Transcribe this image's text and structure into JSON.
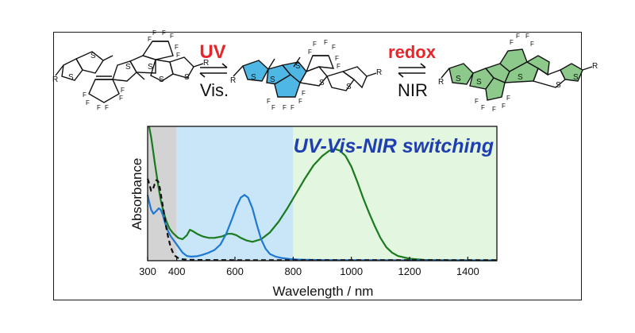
{
  "scheme": {
    "step1_top": "UV",
    "step1_bottom": "Vis.",
    "step2_top": "redox",
    "step2_bottom": "NIR",
    "colors": {
      "accent_red": "#e8262a",
      "blue_ring": "#4fb7e3",
      "green_ring": "#8dc98b",
      "arrow": "#111111"
    },
    "atom_labels": {
      "sulfur": "S",
      "fluorine": "F",
      "substituent": "R"
    }
  },
  "chart_data": {
    "type": "line",
    "title": "UV-Vis-NIR switching",
    "xlabel": "Wavelength / nm",
    "ylabel": "Absorbance",
    "xlim": [
      300,
      1500
    ],
    "ylim": [
      0,
      1
    ],
    "x_ticks": [
      300,
      400,
      600,
      800,
      1000,
      1200,
      1400
    ],
    "grid": false,
    "regions": [
      {
        "range": [
          300,
          400
        ],
        "color": "#d3d3d3"
      },
      {
        "range": [
          400,
          800
        ],
        "color": "#c8e6f7"
      },
      {
        "range": [
          800,
          1500
        ],
        "color": "#e3f6df"
      }
    ],
    "series": [
      {
        "color": "#1a7a1e",
        "style": "solid",
        "points": [
          [
            305,
            1.0
          ],
          [
            312,
            0.92
          ],
          [
            318,
            0.83
          ],
          [
            325,
            0.72
          ],
          [
            335,
            0.58
          ],
          [
            345,
            0.45
          ],
          [
            355,
            0.36
          ],
          [
            365,
            0.29
          ],
          [
            375,
            0.24
          ],
          [
            385,
            0.21
          ],
          [
            395,
            0.19
          ],
          [
            405,
            0.17
          ],
          [
            420,
            0.16
          ],
          [
            435,
            0.19
          ],
          [
            445,
            0.23
          ],
          [
            455,
            0.22
          ],
          [
            470,
            0.2
          ],
          [
            490,
            0.18
          ],
          [
            510,
            0.17
          ],
          [
            530,
            0.17
          ],
          [
            555,
            0.18
          ],
          [
            575,
            0.2
          ],
          [
            590,
            0.2
          ],
          [
            605,
            0.19
          ],
          [
            620,
            0.17
          ],
          [
            640,
            0.15
          ],
          [
            660,
            0.14
          ],
          [
            690,
            0.16
          ],
          [
            720,
            0.21
          ],
          [
            750,
            0.29
          ],
          [
            780,
            0.39
          ],
          [
            810,
            0.5
          ],
          [
            840,
            0.61
          ],
          [
            870,
            0.71
          ],
          [
            900,
            0.78
          ],
          [
            925,
            0.82
          ],
          [
            945,
            0.83
          ],
          [
            960,
            0.82
          ],
          [
            980,
            0.78
          ],
          [
            1000,
            0.7
          ],
          [
            1020,
            0.59
          ],
          [
            1040,
            0.47
          ],
          [
            1060,
            0.36
          ],
          [
            1080,
            0.26
          ],
          [
            1100,
            0.17
          ],
          [
            1120,
            0.1
          ],
          [
            1140,
            0.06
          ],
          [
            1160,
            0.035
          ],
          [
            1200,
            0.015
          ],
          [
            1250,
            0.006
          ],
          [
            1300,
            0.004
          ],
          [
            1350,
            0.003
          ],
          [
            1400,
            0.003
          ],
          [
            1450,
            0.002
          ],
          [
            1500,
            0.002
          ]
        ]
      },
      {
        "color": "#1e78d4",
        "style": "solid",
        "points": [
          [
            300,
            0.49
          ],
          [
            305,
            0.44
          ],
          [
            312,
            0.38
          ],
          [
            320,
            0.35
          ],
          [
            330,
            0.37
          ],
          [
            338,
            0.39
          ],
          [
            345,
            0.38
          ],
          [
            352,
            0.34
          ],
          [
            360,
            0.28
          ],
          [
            370,
            0.22
          ],
          [
            380,
            0.18
          ],
          [
            390,
            0.15
          ],
          [
            400,
            0.12
          ],
          [
            410,
            0.09
          ],
          [
            420,
            0.06
          ],
          [
            435,
            0.035
          ],
          [
            450,
            0.03
          ],
          [
            470,
            0.033
          ],
          [
            490,
            0.045
          ],
          [
            510,
            0.06
          ],
          [
            530,
            0.08
          ],
          [
            550,
            0.12
          ],
          [
            570,
            0.2
          ],
          [
            590,
            0.31
          ],
          [
            605,
            0.4
          ],
          [
            620,
            0.47
          ],
          [
            633,
            0.49
          ],
          [
            645,
            0.47
          ],
          [
            660,
            0.39
          ],
          [
            675,
            0.27
          ],
          [
            690,
            0.16
          ],
          [
            705,
            0.09
          ],
          [
            720,
            0.05
          ],
          [
            740,
            0.03
          ],
          [
            760,
            0.02
          ],
          [
            790,
            0.012
          ],
          [
            820,
            0.008
          ],
          [
            900,
            0.005
          ],
          [
            1000,
            0.004
          ],
          [
            1100,
            0.004
          ],
          [
            1200,
            0.003
          ],
          [
            1300,
            0.003
          ],
          [
            1400,
            0.003
          ],
          [
            1500,
            0.003
          ]
        ]
      },
      {
        "color": "#111111",
        "style": "dashed",
        "points": [
          [
            300,
            0.61
          ],
          [
            306,
            0.57
          ],
          [
            312,
            0.52
          ],
          [
            318,
            0.53
          ],
          [
            324,
            0.57
          ],
          [
            330,
            0.6
          ],
          [
            336,
            0.59
          ],
          [
            342,
            0.54
          ],
          [
            348,
            0.46
          ],
          [
            355,
            0.37
          ],
          [
            362,
            0.27
          ],
          [
            370,
            0.18
          ],
          [
            378,
            0.11
          ],
          [
            386,
            0.065
          ],
          [
            395,
            0.035
          ],
          [
            405,
            0.02
          ],
          [
            415,
            0.012
          ],
          [
            430,
            0.008
          ],
          [
            460,
            0.006
          ],
          [
            500,
            0.005
          ],
          [
            600,
            0.004
          ],
          [
            800,
            0.004
          ],
          [
            1000,
            0.004
          ],
          [
            1200,
            0.004
          ],
          [
            1500,
            0.004
          ]
        ]
      }
    ]
  }
}
